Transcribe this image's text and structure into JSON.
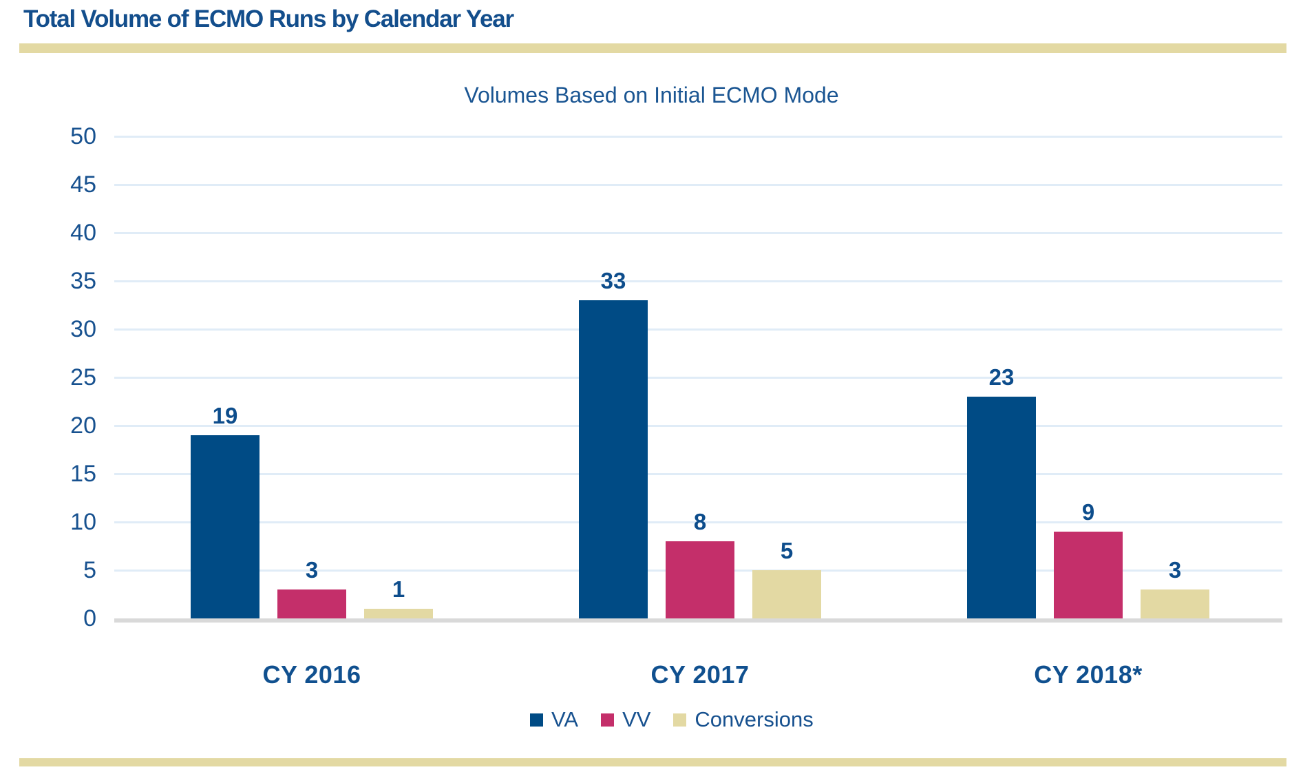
{
  "header": {
    "title": "Total Volume of ECMO Runs by Calendar Year"
  },
  "chart_data": {
    "type": "bar",
    "title": "Volumes Based on Initial ECMO Mode",
    "categories": [
      "CY 2016",
      "CY 2017",
      "CY 2018*"
    ],
    "series": [
      {
        "name": "VA",
        "color": "#004B85",
        "values": [
          19,
          33,
          23
        ]
      },
      {
        "name": "VV",
        "color": "#C42F6A",
        "values": [
          3,
          8,
          9
        ]
      },
      {
        "name": "Conversions",
        "color": "#E3D9A3",
        "values": [
          1,
          5,
          3
        ]
      }
    ],
    "y_axis": {
      "min": 0,
      "max": 50,
      "step": 5,
      "tick_labels": [
        "50",
        "45",
        "40",
        "35",
        "30",
        "25",
        "20",
        "15",
        "10",
        "5",
        "0"
      ]
    },
    "value_labels": true,
    "grid": true,
    "legend_position": "bottom"
  },
  "colors": {
    "title_text": "#134E8C",
    "subtitle_text": "#1A5592",
    "axis_text": "#17518F",
    "value_label_text": "#0D4D8C",
    "category_text": "#10508F",
    "legend_text": "#17518F",
    "rule": "#E3D9A3",
    "gridline": "#E0ECF7",
    "axis_line": "#D9D9D9",
    "background": "#FFFFFF"
  }
}
